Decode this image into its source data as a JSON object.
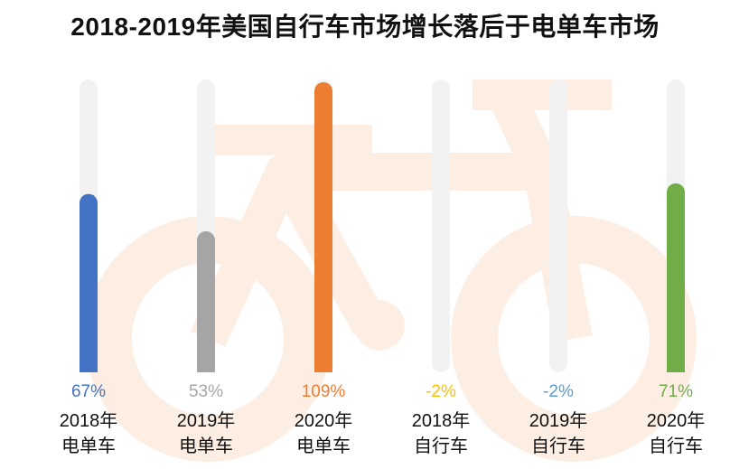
{
  "chart_data": {
    "type": "bar",
    "title": "2018-2019年美国自行车市场增长落后于电单车市场",
    "categories": [
      [
        "2018年",
        "电单车"
      ],
      [
        "2019年",
        "电单车"
      ],
      [
        "2020年",
        "电单车"
      ],
      [
        "2018年",
        "自行车"
      ],
      [
        "2019年",
        "自行车"
      ],
      [
        "2020年",
        "自行车"
      ]
    ],
    "values": [
      67,
      53,
      109,
      -2,
      -2,
      71
    ],
    "value_labels": [
      "67%",
      "53%",
      "109%",
      "-2%",
      "-2%",
      "71%"
    ],
    "colors": [
      "#4472C4",
      "#A5A5A5",
      "#ED7D31",
      "#FFC000",
      "#5B9BD5",
      "#70AD47"
    ],
    "ylim": [
      0,
      110
    ],
    "grid": false,
    "background_icon": "bicycle-icon",
    "background_icon_color": "#FDEEE3",
    "track_color": "#F2F2F2"
  }
}
